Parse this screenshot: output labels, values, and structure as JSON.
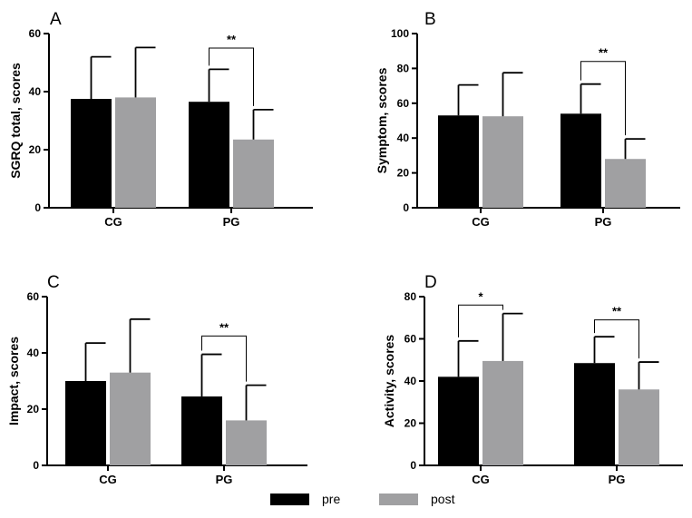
{
  "colors": {
    "pre": "#000000",
    "post": "#a0a0a2",
    "axis": "#000000"
  },
  "legend": [
    {
      "key": "pre",
      "label": "pre"
    },
    {
      "key": "post",
      "label": "post"
    }
  ],
  "chart_data": [
    {
      "panel": "A",
      "type": "bar",
      "ylabel": "SGRQ total, scores",
      "ylim": [
        0,
        60
      ],
      "yticks": [
        0,
        20,
        40,
        60
      ],
      "categories": [
        "CG",
        "PG"
      ],
      "series": [
        {
          "name": "pre",
          "values": [
            37.5,
            36.5
          ],
          "errors": [
            14.5,
            11.2
          ]
        },
        {
          "name": "post",
          "values": [
            38,
            23.5
          ],
          "errors": [
            17.2,
            10.3
          ]
        }
      ],
      "annotations": [
        {
          "category": "PG",
          "label": "**",
          "bracket_top": 55
        }
      ]
    },
    {
      "panel": "B",
      "type": "bar",
      "ylabel": "Symptom, scores",
      "ylim": [
        0,
        100
      ],
      "yticks": [
        0,
        20,
        40,
        60,
        80,
        100
      ],
      "categories": [
        "CG",
        "PG"
      ],
      "series": [
        {
          "name": "pre",
          "values": [
            53,
            54
          ],
          "errors": [
            17.5,
            17
          ]
        },
        {
          "name": "post",
          "values": [
            52.5,
            28
          ],
          "errors": [
            25,
            11.5
          ]
        }
      ],
      "annotations": [
        {
          "category": "PG",
          "label": "**",
          "bracket_top": 84
        }
      ]
    },
    {
      "panel": "C",
      "type": "bar",
      "ylabel": "Impact, scores",
      "ylim": [
        0,
        60
      ],
      "yticks": [
        0,
        20,
        40,
        60
      ],
      "categories": [
        "CG",
        "PG"
      ],
      "series": [
        {
          "name": "pre",
          "values": [
            30,
            24.5
          ],
          "errors": [
            13.5,
            15
          ]
        },
        {
          "name": "post",
          "values": [
            33,
            16
          ],
          "errors": [
            19,
            12.5
          ]
        }
      ],
      "annotations": [
        {
          "category": "PG",
          "label": "**",
          "bracket_top": 46
        }
      ]
    },
    {
      "panel": "D",
      "type": "bar",
      "ylabel": "Activity, scores",
      "ylim": [
        0,
        80
      ],
      "yticks": [
        0,
        20,
        40,
        60,
        80
      ],
      "categories": [
        "CG",
        "PG"
      ],
      "series": [
        {
          "name": "pre",
          "values": [
            42,
            48.5
          ],
          "errors": [
            17,
            12.5
          ]
        },
        {
          "name": "post",
          "values": [
            49.5,
            36
          ],
          "errors": [
            22.5,
            13
          ]
        }
      ],
      "annotations": [
        {
          "category": "CG",
          "label": "*",
          "bracket_top": 76
        },
        {
          "category": "PG",
          "label": "**",
          "bracket_top": 69
        }
      ]
    }
  ]
}
